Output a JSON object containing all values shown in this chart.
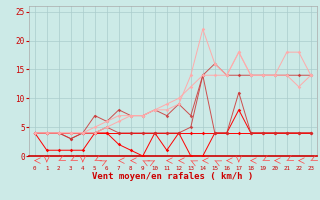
{
  "x": [
    0,
    1,
    2,
    3,
    4,
    5,
    6,
    7,
    8,
    9,
    10,
    11,
    12,
    13,
    14,
    15,
    16,
    17,
    18,
    19,
    20,
    21,
    22,
    23
  ],
  "line1": [
    4,
    4,
    4,
    4,
    4,
    4,
    4,
    4,
    4,
    4,
    4,
    4,
    4,
    4,
    4,
    4,
    4,
    4,
    4,
    4,
    4,
    4,
    4,
    4
  ],
  "line2": [
    4,
    1,
    1,
    1,
    1,
    4,
    4,
    2,
    1,
    0,
    4,
    1,
    4,
    0,
    0,
    4,
    4,
    8,
    4,
    4,
    4,
    4,
    4,
    4
  ],
  "line3": [
    4,
    4,
    4,
    3,
    4,
    4,
    5,
    4,
    4,
    4,
    4,
    4,
    4,
    5,
    14,
    4,
    4,
    11,
    4,
    4,
    4,
    4,
    4,
    4
  ],
  "line4": [
    4,
    4,
    4,
    3,
    4,
    7,
    6,
    8,
    7,
    7,
    8,
    7,
    9,
    7,
    14,
    16,
    14,
    14,
    14,
    14,
    14,
    14,
    14,
    14
  ],
  "line5": [
    4,
    4,
    4,
    4,
    4,
    5,
    6,
    7,
    7,
    7,
    8,
    9,
    10,
    12,
    14,
    14,
    14,
    18,
    14,
    14,
    14,
    14,
    12,
    14
  ],
  "line6": [
    4,
    4,
    4,
    4,
    4,
    4,
    5,
    6,
    7,
    7,
    8,
    8,
    9,
    14,
    22,
    16,
    14,
    18,
    14,
    14,
    14,
    18,
    18,
    14
  ],
  "bg_color": "#cceae7",
  "grid_color": "#aacccc",
  "line_color_1": "#ff0000",
  "line_color_2": "#ff0000",
  "line_color_3": "#cc3333",
  "line_color_4": "#cc3333",
  "line_color_5": "#ffaaaa",
  "line_color_6": "#ffaaaa",
  "xlabel": "Vent moyen/en rafales ( km/h )",
  "ylim": [
    0,
    26
  ],
  "xlim": [
    -0.5,
    23.5
  ],
  "yticks": [
    0,
    5,
    10,
    15,
    20,
    25
  ],
  "arrows_angles": [
    270,
    180,
    225,
    225,
    180,
    225,
    45,
    270,
    270,
    315,
    45,
    270,
    270,
    315,
    270,
    315,
    270,
    180,
    270,
    225,
    270,
    225,
    270,
    225
  ]
}
